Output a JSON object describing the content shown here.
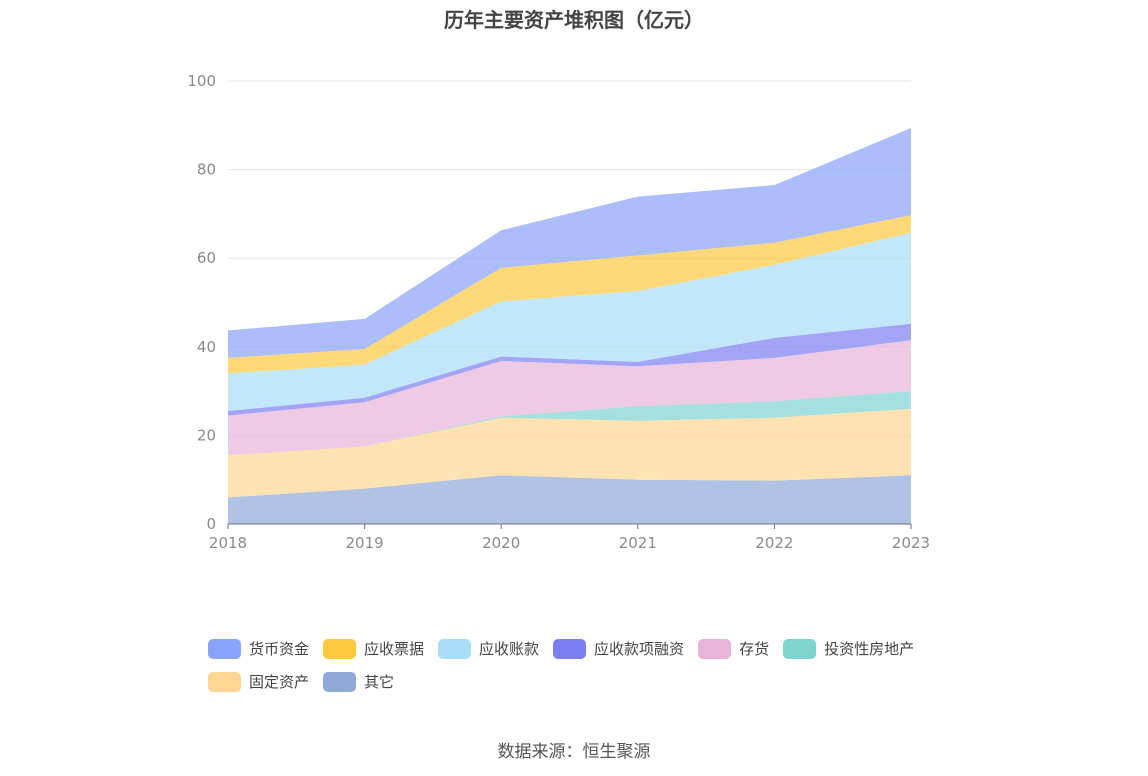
{
  "chart_data": {
    "type": "area",
    "stacked": true,
    "title": "历年主要资产堆积图（亿元）",
    "x": [
      "2018",
      "2019",
      "2020",
      "2021",
      "2022",
      "2023"
    ],
    "ylim": [
      0,
      100
    ],
    "yticks": [
      0,
      20,
      40,
      60,
      80,
      100
    ],
    "grid": true,
    "legend_position": "bottom",
    "series": [
      {
        "name": "其它",
        "color": "#8fa9d8",
        "values": [
          6.0,
          8.0,
          11.0,
          10.0,
          9.8,
          11.0
        ]
      },
      {
        "name": "固定资产",
        "color": "#ffd591",
        "values": [
          9.5,
          9.5,
          13.0,
          13.3,
          14.2,
          15.0
        ]
      },
      {
        "name": "投资性房地产",
        "color": "#7ed3d3",
        "values": [
          0.0,
          0.0,
          0.3,
          3.3,
          3.7,
          4.0
        ]
      },
      {
        "name": "存货",
        "color": "#e7b4d8",
        "values": [
          9.0,
          10.0,
          12.5,
          9.0,
          9.8,
          11.5
        ]
      },
      {
        "name": "应收款项融资",
        "color": "#7b7ff2",
        "values": [
          1.0,
          1.0,
          1.0,
          1.0,
          4.5,
          3.7
        ]
      },
      {
        "name": "应收账款",
        "color": "#a9ddf8",
        "values": [
          8.5,
          7.5,
          12.5,
          16.0,
          16.5,
          20.5
        ]
      },
      {
        "name": "应收票据",
        "color": "#ffc93f",
        "values": [
          3.5,
          3.5,
          7.5,
          8.0,
          5.0,
          4.0
        ]
      },
      {
        "name": "货币资金",
        "color": "#88a3f9",
        "values": [
          6.2,
          6.8,
          8.5,
          13.3,
          13.0,
          19.7
        ]
      }
    ]
  },
  "legend_order": [
    "货币资金",
    "应收票据",
    "应收账款",
    "应收款项融资",
    "存货",
    "投资性房地产",
    "固定资产",
    "其它"
  ],
  "source": "数据来源：恒生聚源"
}
